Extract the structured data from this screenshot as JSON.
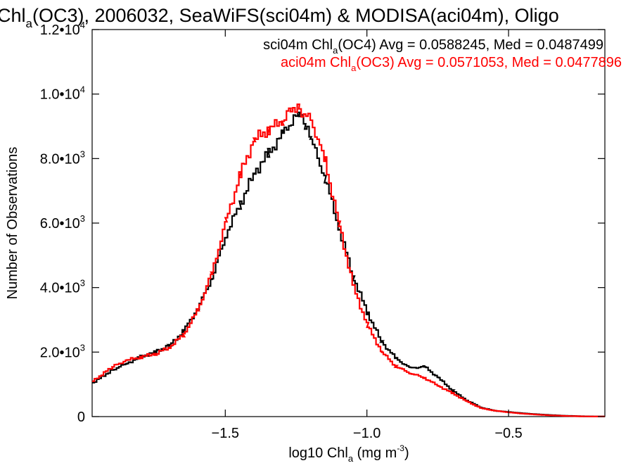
{
  "chart_data": {
    "type": "line",
    "step": true,
    "title": {
      "prefix": "Chl",
      "sub": "a",
      "rest": "(OC3), 2006032, SeaWiFS(sci04m) & MODISA(aci04m), Oligo"
    },
    "xlabel": {
      "prefix": "log10 Chl",
      "sub": "a",
      "mid": " (mg m",
      "sup": "-3",
      "suffix": ")"
    },
    "ylabel": "Number of Observations",
    "xlim": [
      -1.97,
      -0.16
    ],
    "ylim": [
      0,
      12000
    ],
    "x_ticks": [
      {
        "value": -1.5,
        "label": "−1.5"
      },
      {
        "value": -1.0,
        "label": "−1.0"
      },
      {
        "value": -0.5,
        "label": "−0.5"
      }
    ],
    "y_ticks": [
      {
        "value": 0,
        "mant": "0",
        "exp": ""
      },
      {
        "value": 2000,
        "mant": "2.0•10",
        "exp": "3"
      },
      {
        "value": 4000,
        "mant": "4.0•10",
        "exp": "3"
      },
      {
        "value": 6000,
        "mant": "6.0•10",
        "exp": "3"
      },
      {
        "value": 8000,
        "mant": "8.0•10",
        "exp": "3"
      },
      {
        "value": 10000,
        "mant": "1.0•10",
        "exp": "4"
      },
      {
        "value": 12000,
        "mant": "1.2•10",
        "exp": "4"
      }
    ],
    "grid": false,
    "legend_position": "top-right",
    "series": [
      {
        "color": "#000000",
        "legend": {
          "prefix": "sci04m Chl",
          "sub": "a",
          "rest": "(OC4) Avg = 0.0588245, Med = 0.0487499"
        },
        "points": [
          [
            -1.97,
            1050
          ],
          [
            -1.9,
            1450
          ],
          [
            -1.85,
            1650
          ],
          [
            -1.8,
            1850
          ],
          [
            -1.75,
            2000
          ],
          [
            -1.7,
            2200
          ],
          [
            -1.65,
            2650
          ],
          [
            -1.6,
            3350
          ],
          [
            -1.55,
            4300
          ],
          [
            -1.5,
            5650
          ],
          [
            -1.45,
            6600
          ],
          [
            -1.4,
            7550
          ],
          [
            -1.35,
            8150
          ],
          [
            -1.3,
            8750
          ],
          [
            -1.26,
            9250
          ],
          [
            -1.24,
            9350
          ],
          [
            -1.22,
            9000
          ],
          [
            -1.2,
            8600
          ],
          [
            -1.15,
            7400
          ],
          [
            -1.1,
            5800
          ],
          [
            -1.05,
            4300
          ],
          [
            -1.0,
            3200
          ],
          [
            -0.95,
            2300
          ],
          [
            -0.9,
            1800
          ],
          [
            -0.85,
            1500
          ],
          [
            -0.8,
            1550
          ],
          [
            -0.75,
            1200
          ],
          [
            -0.7,
            800
          ],
          [
            -0.65,
            500
          ],
          [
            -0.6,
            280
          ],
          [
            -0.55,
            180
          ],
          [
            -0.5,
            140
          ],
          [
            -0.45,
            100
          ],
          [
            -0.4,
            70
          ],
          [
            -0.35,
            45
          ],
          [
            -0.3,
            25
          ],
          [
            -0.25,
            12
          ],
          [
            -0.2,
            5
          ],
          [
            -0.16,
            3
          ]
        ]
      },
      {
        "color": "#ff0000",
        "legend": {
          "prefix": "aci04m Chl",
          "sub": "a",
          "rest": "(OC3) Avg = 0.0571053, Med = 0.0477896"
        },
        "points": [
          [
            -1.97,
            1100
          ],
          [
            -1.9,
            1550
          ],
          [
            -1.85,
            1750
          ],
          [
            -1.8,
            1850
          ],
          [
            -1.75,
            1950
          ],
          [
            -1.7,
            2150
          ],
          [
            -1.65,
            2550
          ],
          [
            -1.6,
            3300
          ],
          [
            -1.55,
            4450
          ],
          [
            -1.5,
            6050
          ],
          [
            -1.45,
            7500
          ],
          [
            -1.4,
            8600
          ],
          [
            -1.35,
            8900
          ],
          [
            -1.3,
            9200
          ],
          [
            -1.27,
            9600
          ],
          [
            -1.24,
            9500
          ],
          [
            -1.2,
            9200
          ],
          [
            -1.15,
            7900
          ],
          [
            -1.1,
            5900
          ],
          [
            -1.05,
            4000
          ],
          [
            -1.0,
            2800
          ],
          [
            -0.95,
            2000
          ],
          [
            -0.9,
            1550
          ],
          [
            -0.85,
            1350
          ],
          [
            -0.8,
            1200
          ],
          [
            -0.75,
            950
          ],
          [
            -0.7,
            720
          ],
          [
            -0.65,
            470
          ],
          [
            -0.6,
            260
          ],
          [
            -0.55,
            180
          ],
          [
            -0.5,
            130
          ],
          [
            -0.45,
            90
          ],
          [
            -0.4,
            60
          ],
          [
            -0.35,
            35
          ],
          [
            -0.3,
            20
          ],
          [
            -0.25,
            8
          ],
          [
            -0.2,
            3
          ],
          [
            -0.16,
            2
          ]
        ]
      }
    ]
  }
}
